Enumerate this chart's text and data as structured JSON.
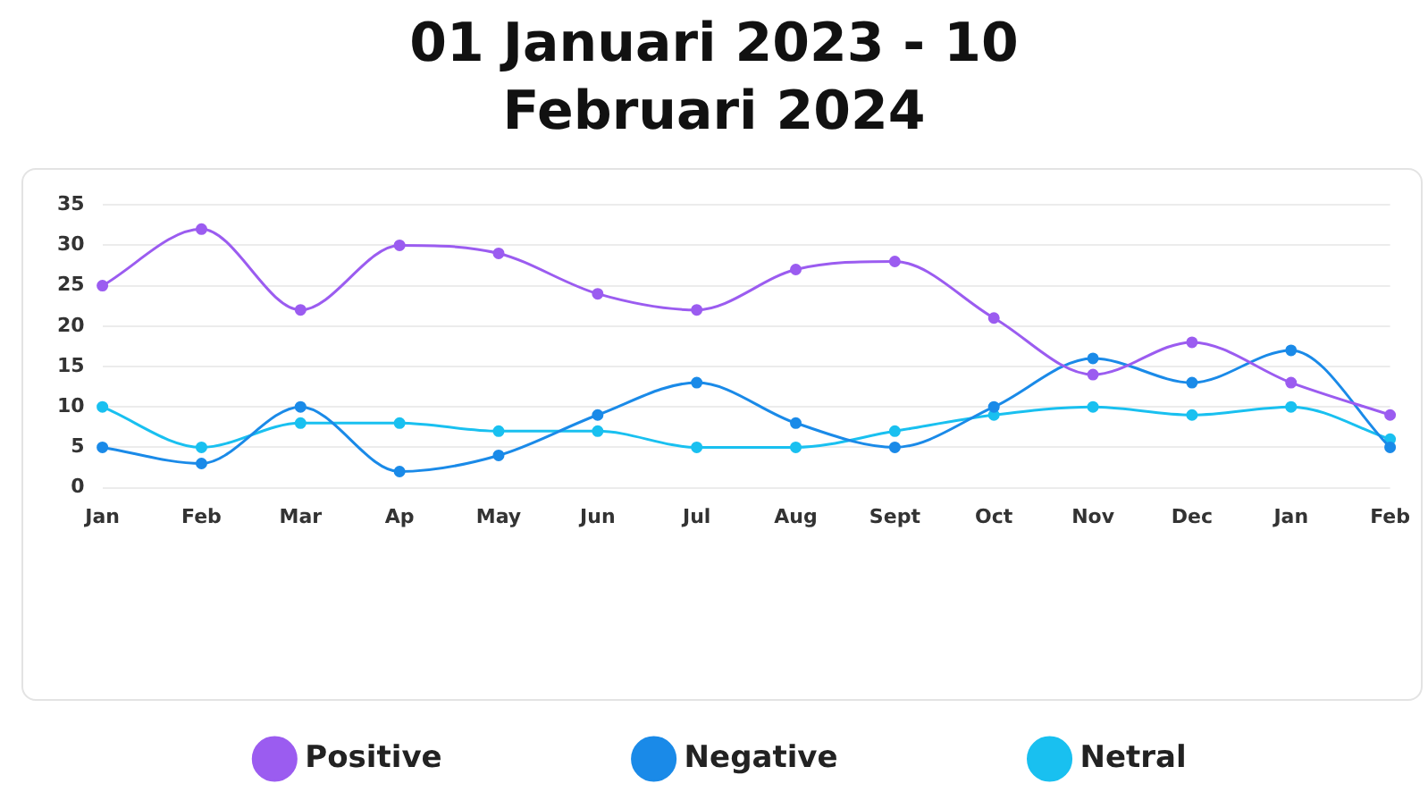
{
  "chart_data": {
    "type": "line",
    "title": "01 Januari 2023 - 10 Februari 2024",
    "categories": [
      "Jan",
      "Feb",
      "Mar",
      "Ap",
      "May",
      "Jun",
      "Jul",
      "Aug",
      "Sept",
      "Oct",
      "Nov",
      "Dec",
      "Jan",
      "Feb"
    ],
    "series": [
      {
        "name": "Positive",
        "color": "#9b5cf0",
        "values": [
          25,
          32,
          22,
          30,
          29,
          24,
          22,
          27,
          28,
          21,
          14,
          18,
          13,
          9
        ]
      },
      {
        "name": "Negative",
        "color": "#1a8ae8",
        "values": [
          5,
          3,
          10,
          2,
          4,
          9,
          13,
          8,
          5,
          10,
          16,
          13,
          17,
          5
        ]
      },
      {
        "name": "Netral",
        "color": "#19c0f0",
        "values": [
          10,
          5,
          8,
          8,
          7,
          7,
          5,
          5,
          7,
          9,
          10,
          9,
          10,
          6
        ]
      }
    ],
    "ylim": [
      0,
      35
    ],
    "yticks": [
      0,
      5,
      10,
      15,
      20,
      25,
      30,
      35
    ],
    "grid": "y",
    "legend": "bottom",
    "marker": "circle",
    "line_style": "solid"
  }
}
